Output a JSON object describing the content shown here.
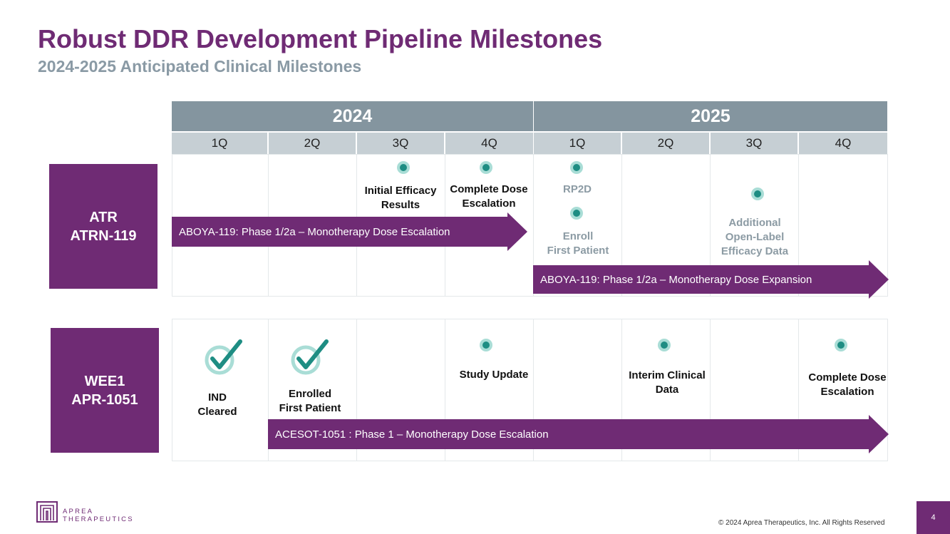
{
  "title": "Robust DDR Development Pipeline Milestones",
  "subtitle": "2024-2025 Anticipated Clinical Milestones",
  "years": [
    "2024",
    "2025"
  ],
  "quarters": [
    "1Q",
    "2Q",
    "3Q",
    "4Q",
    "1Q",
    "2Q",
    "3Q",
    "4Q"
  ],
  "rows": {
    "atr": {
      "label_line1": "ATR",
      "label_line2": "ATRN-119",
      "milestones": {
        "initial_efficacy_l1": "Initial Efficacy",
        "initial_efficacy_l2": "Results",
        "complete_dose_l1": "Complete Dose",
        "complete_dose_l2": "Escalation",
        "rp2d": "RP2D",
        "enroll_l1": "Enroll",
        "enroll_l2": "First Patient",
        "additional_l1": "Additional",
        "additional_l2": "Open-Label",
        "additional_l3": "Efficacy Data"
      },
      "arrow1": "ABOYA-119: Phase 1/2a – Monotherapy Dose Escalation",
      "arrow2": "ABOYA-119: Phase 1/2a – Monotherapy Dose Expansion"
    },
    "wee1": {
      "label_line1": "WEE1",
      "label_line2": "APR-1051",
      "milestones": {
        "ind_l1": "IND",
        "ind_l2": "Cleared",
        "enrolled_l1": "Enrolled",
        "enrolled_l2": "First Patient",
        "study_update": "Study Update",
        "interim_l1": "Interim Clinical",
        "interim_l2": "Data",
        "complete_dose_l1": "Complete Dose",
        "complete_dose_l2": "Escalation"
      },
      "arrow": "ACESOT-1051 : Phase 1 – Monotherapy Dose Escalation"
    }
  },
  "logo": {
    "line1": "APREA",
    "line2": "THERAPEUTICS"
  },
  "footer": {
    "copyright": "© 2024 Aprea Therapeutics, Inc. All Rights Reserved",
    "page_number": "4"
  },
  "colors": {
    "brand_purple": "#6f2b74",
    "header_grey": "#84959f",
    "quarter_grey": "#c6cfd4",
    "dot_teal": "#1e8d83"
  }
}
